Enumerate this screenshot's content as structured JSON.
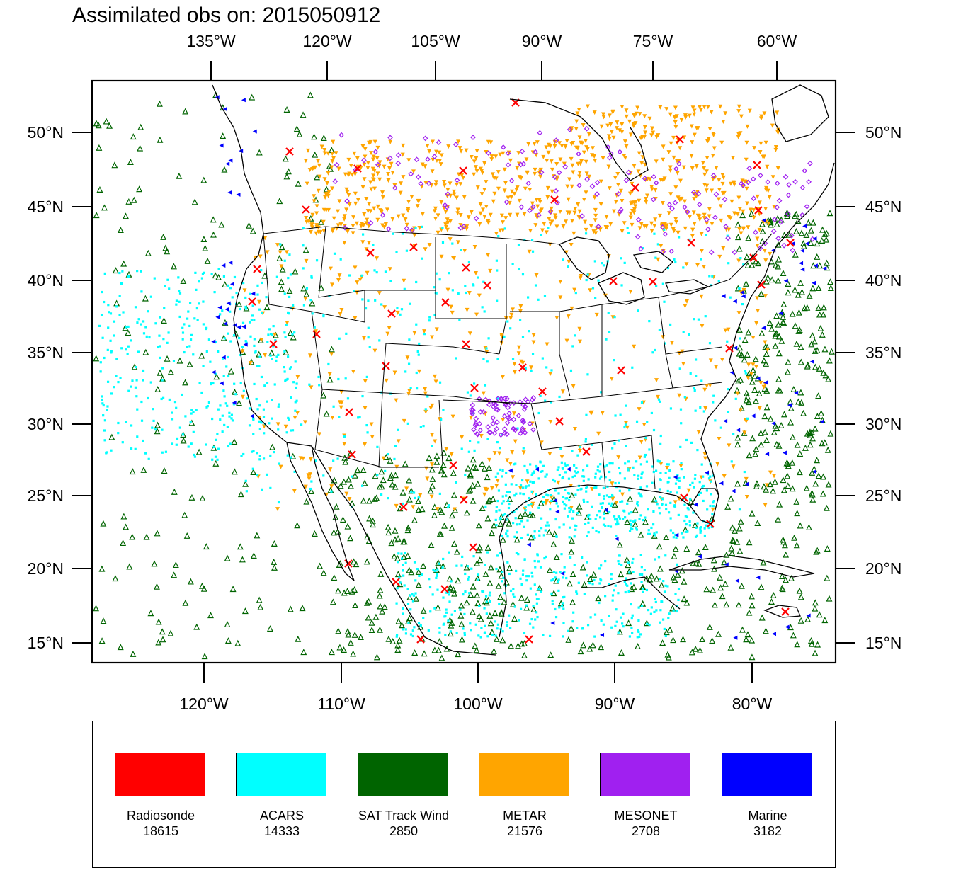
{
  "title": "Assimilated obs on: 2015050912",
  "axes": {
    "top_lon_labels": [
      "135°W",
      "120°W",
      "105°W",
      "90°W",
      "75°W",
      "60°W"
    ],
    "bottom_lon_labels": [
      "120°W",
      "110°W",
      "100°W",
      "90°W",
      "80°W"
    ],
    "lat_labels": [
      "50°N",
      "45°N",
      "40°N",
      "35°N",
      "30°N",
      "25°N",
      "20°N",
      "15°N"
    ]
  },
  "legend": [
    {
      "name": "Radiosonde",
      "count": "18615",
      "color": "#ff0000"
    },
    {
      "name": "ACARS",
      "count": "14333",
      "color": "#00ffff"
    },
    {
      "name": "SAT Track Wind",
      "count": "2850",
      "color": "#006400"
    },
    {
      "name": "METAR",
      "count": "21576",
      "color": "#ffa500"
    },
    {
      "name": "MESONET",
      "count": "2708",
      "color": "#a020f0"
    },
    {
      "name": "Marine",
      "count": "3182",
      "color": "#0000ff"
    }
  ]
}
